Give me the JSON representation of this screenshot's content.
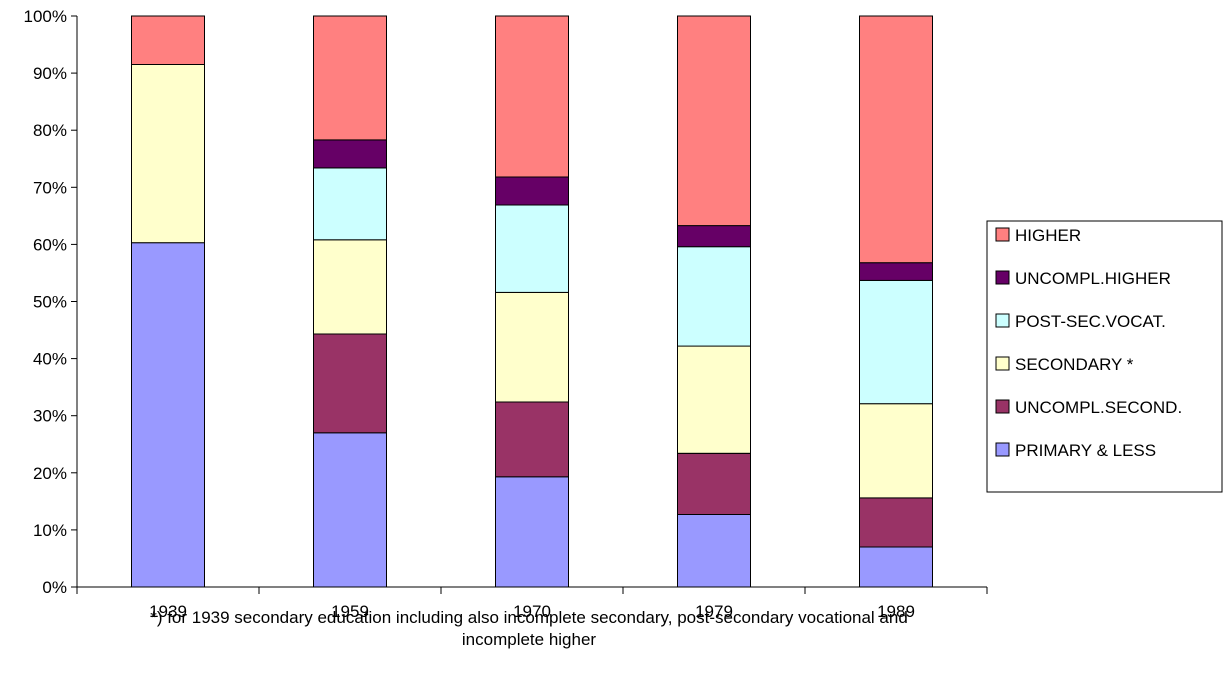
{
  "chart_data": {
    "type": "bar",
    "stacked": true,
    "percent": true,
    "categories": [
      "1939",
      "1959",
      "1970",
      "1979",
      "1989"
    ],
    "series": [
      {
        "name": "PRIMARY & LESS",
        "color": "#9999ff",
        "values": [
          60.3,
          27.0,
          19.3,
          12.7,
          7.0
        ]
      },
      {
        "name": "UNCOMPL.SECOND.",
        "color": "#993366",
        "values": [
          0,
          17.3,
          13.1,
          10.7,
          8.6
        ]
      },
      {
        "name": "SECONDARY *",
        "color": "#ffffcc",
        "values": [
          31.2,
          16.5,
          19.2,
          18.8,
          16.5
        ]
      },
      {
        "name": "POST-SEC.VOCAT.",
        "color": "#ccffff",
        "values": [
          0,
          12.6,
          15.3,
          17.4,
          21.6
        ]
      },
      {
        "name": "UNCOMPL.HIGHER",
        "color": "#660066",
        "values": [
          0,
          4.9,
          4.9,
          3.7,
          3.1
        ]
      },
      {
        "name": "HIGHER",
        "color": "#ff8080",
        "values": [
          8.5,
          21.7,
          28.2,
          36.7,
          43.2
        ]
      }
    ],
    "yticks": [
      "0%",
      "10%",
      "20%",
      "30%",
      "40%",
      "50%",
      "60%",
      "70%",
      "80%",
      "90%",
      "100%"
    ],
    "ylim": [
      0,
      100
    ],
    "legend_order": [
      "HIGHER",
      "UNCOMPL.HIGHER",
      "POST-SEC.VOCAT.",
      "SECONDARY *",
      "UNCOMPL.SECOND.",
      "PRIMARY & LESS"
    ],
    "legend_position": "right",
    "grid": false,
    "footnote_lines": [
      "*) for 1939 secondary education including also incomplete secondary, post-secondary vocational and",
      "incomplete higher"
    ]
  }
}
